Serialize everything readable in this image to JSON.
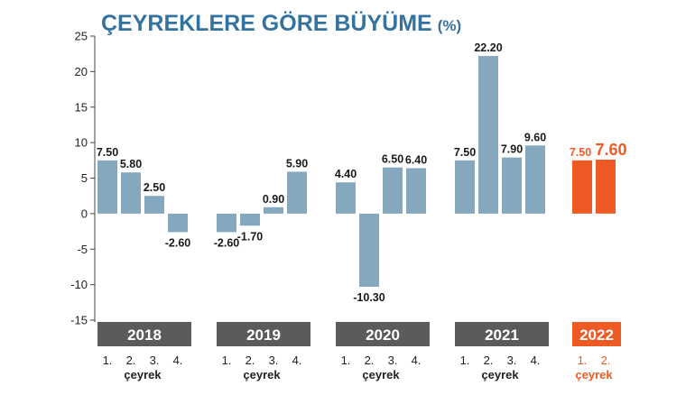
{
  "colors": {
    "bar": "#85a8bf",
    "highlight": "#ee5a24",
    "title": "#35739f",
    "year_bg": "#5b5b5b",
    "axis": "#444444",
    "text": "#1a1a1a"
  },
  "quarter_labels": [
    "1.",
    "2.",
    "3.",
    "4."
  ],
  "quarter_word": "çeyrek",
  "chart_data": {
    "type": "bar",
    "title": "ÇEYREKLERE GÖRE BÜYÜME",
    "title_unit": "(%)",
    "xlabel": "",
    "ylabel": "",
    "ylim": [
      -15,
      25
    ],
    "yticks": [
      25,
      20,
      15,
      10,
      5,
      0,
      -5,
      -10,
      -15
    ],
    "grid": false,
    "legend": "none",
    "groups": [
      {
        "year": "2018",
        "values": [
          7.5,
          5.8,
          2.5,
          -2.6
        ],
        "labels": [
          "7.50",
          "5.80",
          "2.50",
          "-2.60"
        ]
      },
      {
        "year": "2019",
        "values": [
          -2.6,
          -1.7,
          0.9,
          5.9
        ],
        "labels": [
          "-2.60",
          "-1.70",
          "0.90",
          "5.90"
        ]
      },
      {
        "year": "2020",
        "values": [
          4.4,
          -10.3,
          6.5,
          6.4
        ],
        "labels": [
          "4.40",
          "-10.30",
          "6.50",
          "6.40"
        ]
      },
      {
        "year": "2021",
        "values": [
          7.5,
          22.2,
          7.9,
          9.6
        ],
        "labels": [
          "7.50",
          "22.20",
          "7.90",
          "9.60"
        ]
      },
      {
        "year": "2022",
        "values": [
          7.5,
          7.6
        ],
        "labels": [
          "7.50",
          "7.60"
        ],
        "highlight": true
      }
    ]
  }
}
